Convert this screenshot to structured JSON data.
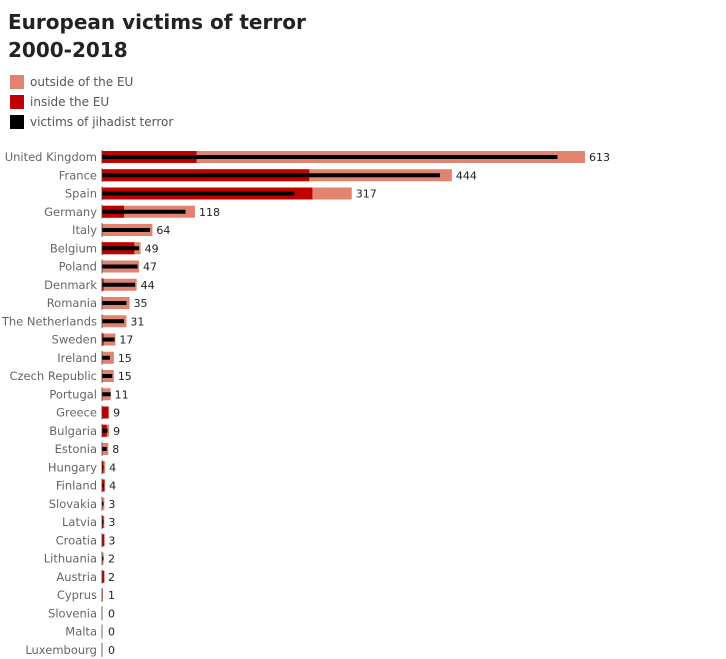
{
  "chart_data": {
    "type": "bar",
    "title": "European victims of terror",
    "subtitle": "2000-2018",
    "categories": [
      "United Kingdom",
      "France",
      "Spain",
      "Germany",
      "Italy",
      "Belgium",
      "Poland",
      "Denmark",
      "Romania",
      "The Netherlands",
      "Sweden",
      "Ireland",
      "Czech Republic",
      "Portugal",
      "Greece",
      "Bulgaria",
      "Estonia",
      "Hungary",
      "Finland",
      "Slovakia",
      "Latvia",
      "Croatia",
      "Lithuania",
      "Austria",
      "Cyprus",
      "Slovenia",
      "Malta",
      "Luxembourg"
    ],
    "series": [
      {
        "name": "outside of the EU",
        "color": "#e08370",
        "values": [
          613,
          444,
          317,
          118,
          64,
          49,
          47,
          44,
          35,
          31,
          17,
          15,
          15,
          11,
          9,
          9,
          8,
          4,
          4,
          3,
          3,
          3,
          2,
          2,
          1,
          0,
          0,
          0
        ]
      },
      {
        "name": "inside the EU",
        "color": "#c00000",
        "values": [
          120,
          263,
          267,
          28,
          0,
          41,
          0,
          2,
          0,
          0,
          2,
          0,
          0,
          0,
          8,
          6,
          0,
          2,
          3,
          0,
          1,
          3,
          0,
          3,
          0,
          0,
          0,
          0
        ]
      },
      {
        "name": "victims of jihadist terror",
        "color": "#000000",
        "values": [
          578,
          429,
          244,
          106,
          61,
          47,
          45,
          42,
          31,
          28,
          16,
          10,
          13,
          11,
          0,
          7,
          6,
          1,
          2,
          1,
          1,
          0,
          1,
          0,
          0,
          0,
          0,
          0
        ]
      }
    ],
    "data_labels": [
      "613",
      "444",
      "317",
      "118",
      "64",
      "49",
      "47",
      "44",
      "35",
      "31",
      "17",
      "15",
      "15",
      "11",
      "9",
      "9",
      "8",
      "4",
      "4",
      "3",
      "3",
      "3",
      "2",
      "2",
      "1",
      "0",
      "0",
      "0"
    ],
    "legend": "top-left",
    "grid": false,
    "xlim": [
      0,
      613
    ]
  }
}
